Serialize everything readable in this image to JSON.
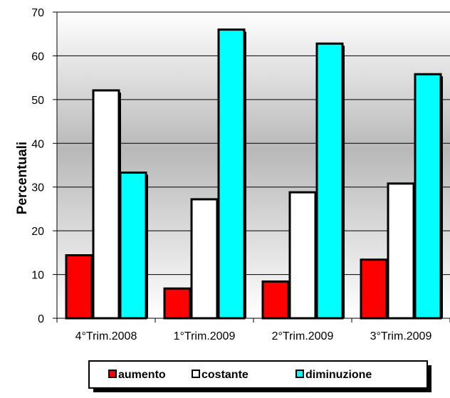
{
  "chart_data": {
    "type": "bar",
    "title": "",
    "xlabel": "",
    "ylabel": "Percentuali",
    "ylim": [
      0,
      70
    ],
    "yticks": [
      0,
      10,
      20,
      30,
      40,
      50,
      60,
      70
    ],
    "grid": true,
    "legend_position": "bottom",
    "categories": [
      "4°Trim.2008",
      "1°Trim.2009",
      "2°Trim.2009",
      "3°Trim.2009"
    ],
    "series": [
      {
        "name": "aumento",
        "color": "#ff0000",
        "values": [
          14.4,
          6.8,
          8.4,
          13.4
        ]
      },
      {
        "name": "costante",
        "color": "#ffffff",
        "values": [
          52.1,
          27.2,
          28.8,
          30.8
        ]
      },
      {
        "name": "diminuzione",
        "color": "#00ffff",
        "values": [
          33.3,
          66.0,
          62.8,
          55.8
        ]
      }
    ]
  }
}
